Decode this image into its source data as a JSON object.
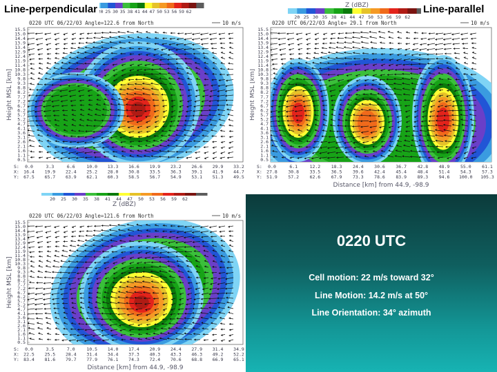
{
  "labels": {
    "top_left": "Line-perpendicular",
    "top_right": "Line-parallel"
  },
  "colorbar": {
    "title": "Z (dBZ)",
    "values": [
      "20",
      "25",
      "30",
      "35",
      "38",
      "41",
      "44",
      "47",
      "50",
      "53",
      "56",
      "59",
      "62"
    ],
    "colors": [
      "#7fd4f5",
      "#3a9be0",
      "#2155d6",
      "#6a3fc8",
      "#3bbf3b",
      "#17a317",
      "#0b7a0b",
      "#ffff33",
      "#e6c229",
      "#f59a25",
      "#f06a1b",
      "#e3231b",
      "#b01b14",
      "#7a1410",
      "#5c5c5c"
    ]
  },
  "panels": [
    {
      "id": "tl",
      "header": "0220 UTC   06/22/03   Angle=122.6 from North",
      "scale": "10 m/s",
      "ylabel": "Height MSL [km]",
      "xlabel": "",
      "yticks": [
        "15.5",
        "15.0",
        "14.4",
        "13.9",
        "13.4",
        "12.9",
        "12.4",
        "11.9",
        "11.4",
        "10.8",
        "10.3",
        "9.8",
        "9.3",
        "8.8",
        "8.2",
        "7.7",
        "7.2",
        "6.7",
        "6.2",
        "5.7",
        "5.2",
        "4.7",
        "4.1",
        "3.6",
        "3.1",
        "2.6",
        "2.1",
        "1.6",
        "1.1",
        "0.5"
      ],
      "rows": [
        [
          "S:",
          "0.0",
          "3.3",
          "6.6",
          "10.0",
          "13.3",
          "16.6",
          "19.9",
          "23.2",
          "26.6",
          "29.9",
          "33.2"
        ],
        [
          "X:",
          "16.4",
          "19.9",
          "22.4",
          "25.2",
          "28.0",
          "30.8",
          "33.5",
          "36.3",
          "39.1",
          "41.9",
          "44.7"
        ],
        [
          "Y:",
          "67.5",
          "65.7",
          "63.9",
          "62.1",
          "60.3",
          "58.5",
          "56.7",
          "54.9",
          "53.1",
          "51.3",
          "49.5"
        ]
      ]
    },
    {
      "id": "tr",
      "header": "0220 UTC   06/22/03   Angle= 29.1 from North",
      "scale": "10 m/s",
      "ylabel": "Height MSL [km]",
      "xlabel": "Distance [km] from 44.9, -98.9",
      "yticks": [
        "15.5",
        "15.0",
        "14.4",
        "13.9",
        "13.4",
        "12.9",
        "12.4",
        "11.9",
        "11.4",
        "10.8",
        "10.3",
        "9.8",
        "9.3",
        "8.8",
        "8.2",
        "7.7",
        "7.2",
        "6.7",
        "6.2",
        "5.7",
        "5.2",
        "4.7",
        "4.1",
        "3.6",
        "3.1",
        "2.6",
        "2.1",
        "1.6",
        "1.1",
        "0.5"
      ],
      "rows": [
        [
          "S:",
          "0.0",
          "6.1",
          "12.2",
          "18.3",
          "24.4",
          "30.6",
          "36.7",
          "42.8",
          "48.9",
          "55.0",
          "61.1"
        ],
        [
          "X:",
          "27.8",
          "30.8",
          "33.5",
          "36.5",
          "39.6",
          "42.4",
          "45.4",
          "48.4",
          "51.4",
          "54.3",
          "57.3"
        ],
        [
          "Y:",
          "51.9",
          "57.2",
          "62.6",
          "67.9",
          "73.3",
          "78.6",
          "83.9",
          "89.3",
          "94.6",
          "100.0",
          "105.3"
        ]
      ]
    },
    {
      "id": "bl",
      "header": "0220 UTC   06/22/03   Angle=121.6 from North",
      "scale": "10 m/s",
      "ylabel": "Height MSL [km]",
      "xlabel": "Distance [km] from 44.9, -98.9",
      "yticks": [
        "15.5",
        "15.0",
        "14.4",
        "13.9",
        "13.4",
        "12.9",
        "12.4",
        "11.9",
        "11.4",
        "10.8",
        "10.3",
        "9.8",
        "9.3",
        "8.8",
        "8.2",
        "7.7",
        "7.2",
        "6.7",
        "6.2",
        "5.7",
        "5.2",
        "4.7",
        "4.1",
        "3.6",
        "3.1",
        "2.6",
        "2.1",
        "1.6",
        "1.1",
        "0.5"
      ],
      "rows": [
        [
          "S:",
          "0.0",
          "3.5",
          "7.0",
          "10.5",
          "14.0",
          "17.4",
          "20.9",
          "24.4",
          "27.9",
          "31.4",
          "34.9"
        ],
        [
          "X:",
          "22.5",
          "25.5",
          "28.4",
          "31.4",
          "34.4",
          "37.3",
          "40.3",
          "43.3",
          "46.3",
          "49.2",
          "52.2"
        ],
        [
          "Y:",
          "83.4",
          "81.6",
          "79.7",
          "77.9",
          "76.1",
          "74.3",
          "72.4",
          "70.6",
          "68.8",
          "66.9",
          "65.1"
        ]
      ]
    }
  ],
  "info": {
    "title": "0220 UTC",
    "lines": [
      "Cell motion: 22 m/s toward 32°",
      "Line Motion:  14.2 m/s at 50°",
      "Line Orientation:  34° azimuth"
    ]
  }
}
